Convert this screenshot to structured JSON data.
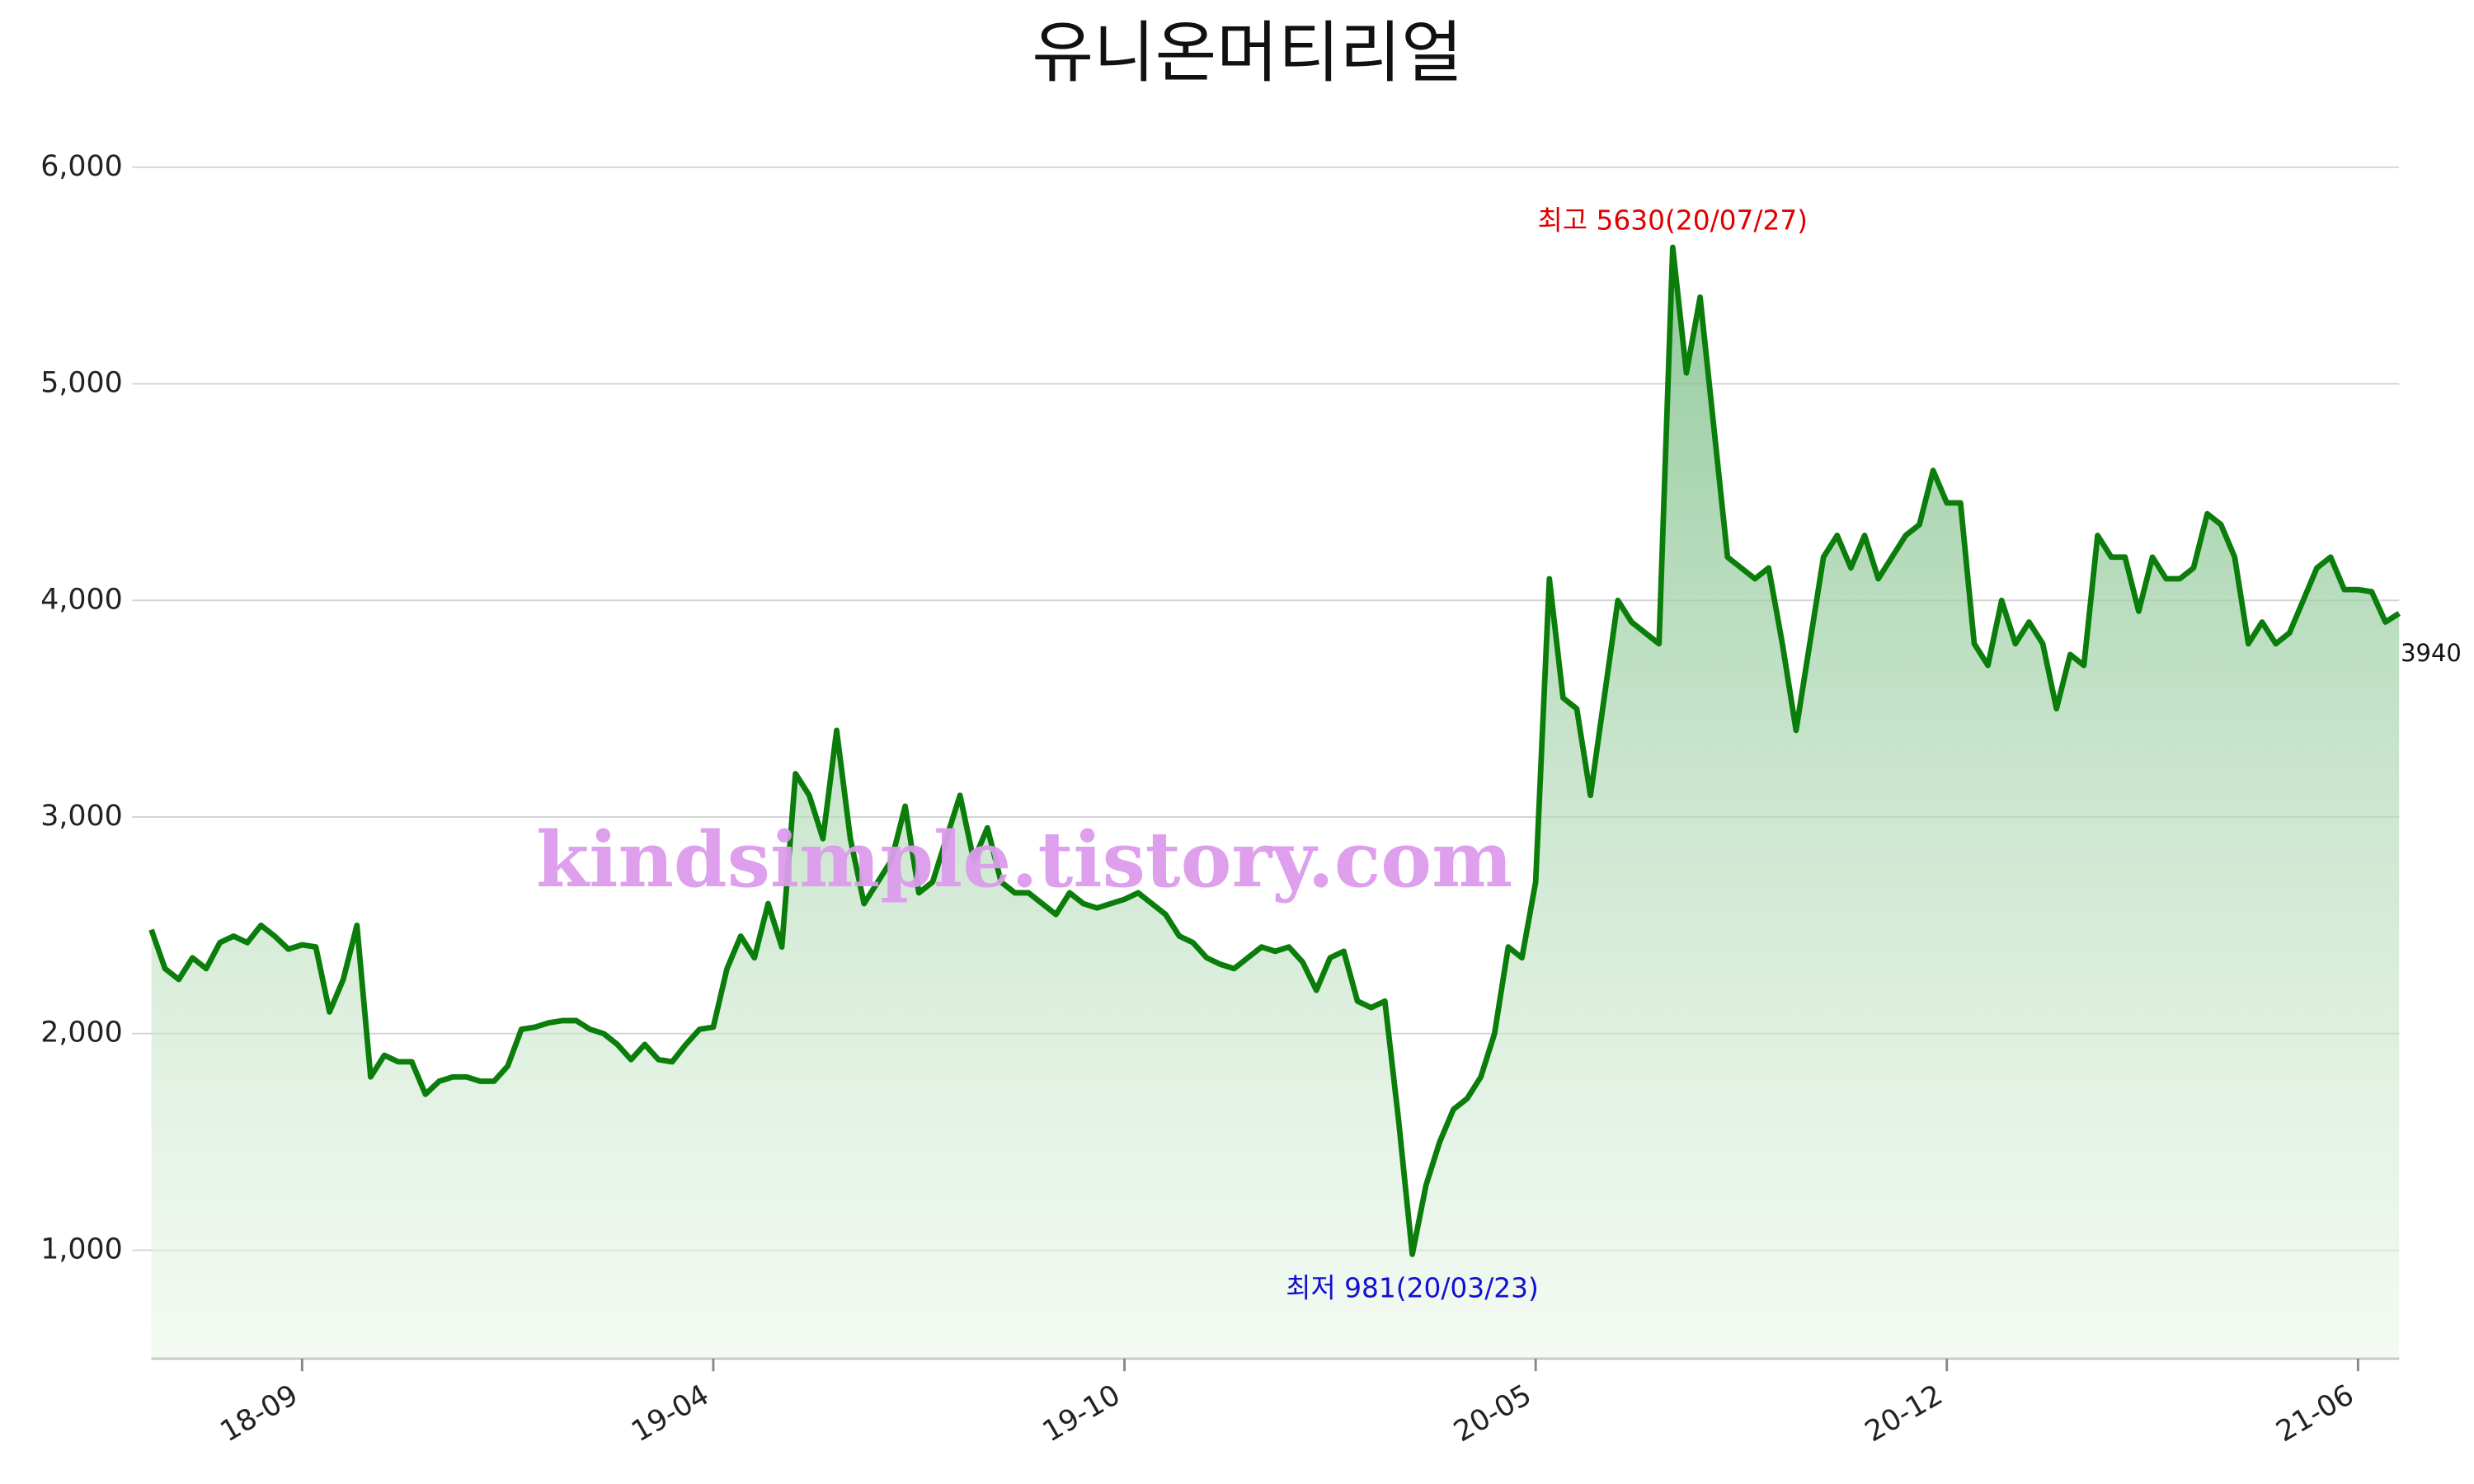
{
  "chart_data": {
    "type": "area-line",
    "title": "유니온머티리얼",
    "categories": [
      null,
      null,
      null,
      null,
      null,
      null,
      null,
      null,
      null,
      null,
      null,
      "18-09",
      null,
      null,
      null,
      null,
      null,
      null,
      null,
      null,
      null,
      null,
      null,
      null,
      null,
      null,
      null,
      null,
      null,
      null,
      null,
      null,
      null,
      null,
      null,
      null,
      null,
      null,
      null,
      null,
      null,
      "19-04",
      null,
      null,
      null,
      null,
      null,
      null,
      null,
      null,
      null,
      null,
      null,
      null,
      null,
      null,
      null,
      null,
      null,
      null,
      null,
      null,
      null,
      null,
      null,
      null,
      null,
      null,
      null,
      null,
      null,
      "19-10",
      null,
      null,
      null,
      null,
      null,
      null,
      null,
      null,
      null,
      null,
      null,
      null,
      null,
      null,
      null,
      null,
      null,
      null,
      null,
      null,
      null,
      null,
      null,
      null,
      null,
      null,
      null,
      null,
      null,
      "20-05",
      null,
      null,
      null,
      null,
      null,
      null,
      null,
      null,
      null,
      null,
      null,
      null,
      null,
      null,
      null,
      null,
      null,
      null,
      null,
      null,
      null,
      null,
      null,
      null,
      null,
      null,
      null,
      null,
      null,
      "20-12",
      null,
      null,
      null,
      null,
      null,
      null,
      null,
      null,
      null,
      null,
      null,
      null,
      null,
      null,
      null,
      null,
      null,
      null,
      null,
      null,
      null,
      null,
      null,
      null,
      null,
      null,
      null,
      null,
      null,
      "21-06",
      null,
      null,
      null
    ],
    "series": [
      {
        "color": "#0a7d0a",
        "values": [
          2480,
          2300,
          2250,
          2350,
          2300,
          2420,
          2450,
          2420,
          2500,
          2450,
          2390,
          2410,
          2400,
          2100,
          2250,
          2500,
          1800,
          1900,
          1870,
          1870,
          1720,
          1780,
          1800,
          1800,
          1780,
          1780,
          1850,
          2020,
          2030,
          2050,
          2060,
          2060,
          2020,
          2000,
          1950,
          1880,
          1950,
          1880,
          1870,
          1950,
          2020,
          2030,
          2300,
          2450,
          2350,
          2600,
          2400,
          3200,
          3100,
          2900,
          3400,
          2900,
          2600,
          2700,
          2800,
          3050,
          2650,
          2700,
          2900,
          3100,
          2800,
          2950,
          2700,
          2650,
          2650,
          2600,
          2550,
          2650,
          2600,
          2580,
          2600,
          2620,
          2650,
          2600,
          2550,
          2450,
          2420,
          2350,
          2320,
          2300,
          2350,
          2400,
          2380,
          2400,
          2330,
          2200,
          2350,
          2380,
          2150,
          2120,
          2150,
          1600,
          981,
          1300,
          1500,
          1650,
          1700,
          1800,
          2000,
          2400,
          2350,
          2700,
          4100,
          3550,
          3500,
          3100,
          3550,
          4000,
          3900,
          3850,
          3800,
          5630,
          5050,
          5400,
          4800,
          4200,
          4150,
          4100,
          4150,
          3800,
          3400,
          3800,
          4200,
          4300,
          4150,
          4300,
          4100,
          4200,
          4300,
          4350,
          4600,
          4450,
          4450,
          3800,
          3700,
          4000,
          3800,
          3900,
          3800,
          3500,
          3750,
          3700,
          4300,
          4200,
          4200,
          3950,
          4200,
          4100,
          4100,
          4150,
          4400,
          4350,
          4200,
          3800,
          3900,
          3800,
          3850,
          4000,
          4150,
          4200,
          4050,
          4050,
          4040,
          3900,
          3940
        ]
      }
    ],
    "ylim": [
      500,
      6000
    ],
    "yticks": [
      {
        "value": 1000,
        "label": "1,000"
      },
      {
        "value": 2000,
        "label": "2,000"
      },
      {
        "value": 3000,
        "label": "3,000"
      },
      {
        "value": 4000,
        "label": "4,000"
      },
      {
        "value": 5000,
        "label": "5,000"
      },
      {
        "value": 6000,
        "label": "6,000"
      }
    ],
    "grid": true,
    "annotations": [
      {
        "text": "최고 5630(20/07/27)",
        "index": 111,
        "color": "#e00000",
        "position": "above"
      },
      {
        "text": "최저 981(20/03/23)",
        "index": 92,
        "color": "#1010d0",
        "position": "below"
      }
    ],
    "watermark": "kindsimple.tistory.com"
  }
}
